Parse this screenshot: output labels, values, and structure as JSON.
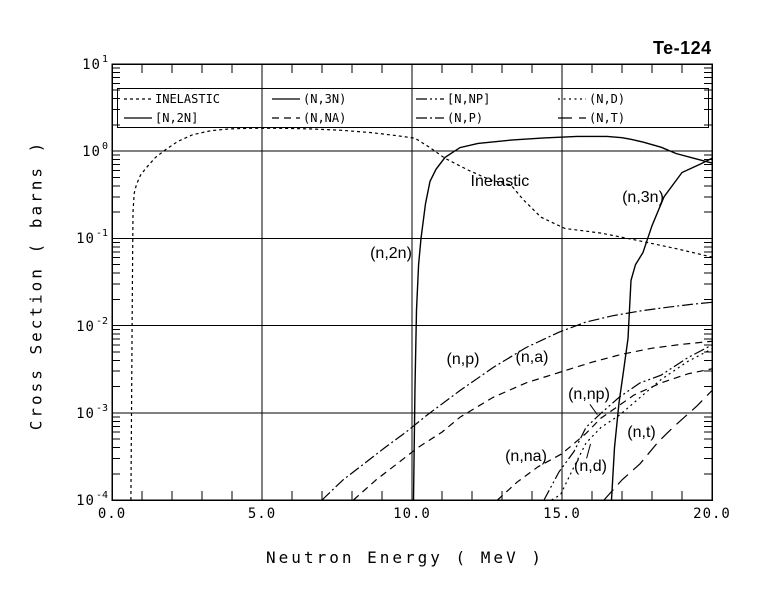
{
  "title": "Te-124",
  "axes": {
    "x": {
      "label": "Neutron Energy ( MeV )",
      "ticks": [
        "0.0",
        "5.0",
        "10.0",
        "15.0",
        "20.0"
      ],
      "tick_values": [
        0,
        5,
        10,
        15,
        20
      ],
      "range": [
        0,
        20
      ],
      "minor_step": 1
    },
    "y": {
      "label": "Cross Section ( barns )",
      "ticks": [
        {
          "base": "10",
          "exp": "1"
        },
        {
          "base": "10",
          "exp": "0"
        },
        {
          "base": "10",
          "exp": "-1"
        },
        {
          "base": "10",
          "exp": "-2"
        },
        {
          "base": "10",
          "exp": "-3"
        },
        {
          "base": "10",
          "exp": "-4"
        }
      ],
      "tick_values": [
        10,
        1,
        0.1,
        0.01,
        0.001,
        0.0001
      ],
      "scale": "log",
      "range": [
        0.0001,
        10
      ]
    }
  },
  "legend": {
    "position": "top",
    "entries": [
      {
        "label": "INELASTIC",
        "dash": "3 3"
      },
      {
        "label": "(N,3N)",
        "dash": ""
      },
      {
        "label": "[N,NP]",
        "dash": "11 3 2 3 2 3"
      },
      {
        "label": "(N,D)",
        "dash": "2 3.5"
      },
      {
        "label": "[N,2N]",
        "dash": ""
      },
      {
        "label": "(N,NA)",
        "dash": "7 5"
      },
      {
        "label": "(N,P)",
        "dash": "11 3 2 3"
      },
      {
        "label": "(N,T)",
        "dash": "14 7"
      }
    ]
  },
  "chart_data": {
    "type": "line",
    "title": "Te-124",
    "xlabel": "Neutron Energy ( MeV )",
    "ylabel": "Cross Section ( barns )",
    "xlim": [
      0,
      20
    ],
    "ylim": [
      0.0001,
      10
    ],
    "y_scale": "log",
    "grid": true,
    "legend_position": "top",
    "series": [
      {
        "id": "inelastic",
        "label": "INELASTIC",
        "dash": "3 3",
        "points": [
          [
            0.63,
            0.0001
          ],
          [
            0.66,
            0.003
          ],
          [
            0.68,
            0.03
          ],
          [
            0.7,
            0.2
          ],
          [
            0.74,
            0.33
          ],
          [
            0.82,
            0.42
          ],
          [
            0.95,
            0.53
          ],
          [
            1.15,
            0.65
          ],
          [
            1.45,
            0.85
          ],
          [
            1.8,
            1.05
          ],
          [
            2.2,
            1.3
          ],
          [
            2.7,
            1.55
          ],
          [
            3.3,
            1.72
          ],
          [
            3.9,
            1.8
          ],
          [
            4.6,
            1.83
          ],
          [
            5.6,
            1.83
          ],
          [
            6.6,
            1.8
          ],
          [
            7.6,
            1.74
          ],
          [
            8.6,
            1.64
          ],
          [
            9.4,
            1.52
          ],
          [
            10.1,
            1.41
          ],
          [
            10.6,
            1.1
          ],
          [
            11.1,
            0.83
          ],
          [
            11.9,
            0.6
          ],
          [
            12.6,
            0.47
          ],
          [
            13.3,
            0.41
          ],
          [
            13.7,
            0.28
          ],
          [
            14.3,
            0.175
          ],
          [
            15.1,
            0.13
          ],
          [
            16.3,
            0.115
          ],
          [
            17.5,
            0.095
          ],
          [
            18.9,
            0.075
          ],
          [
            20,
            0.061
          ]
        ]
      },
      {
        "id": "n2n",
        "label": "[N,2N]",
        "dash": "",
        "points": [
          [
            10.05,
            0.0001
          ],
          [
            10.1,
            0.002
          ],
          [
            10.15,
            0.015
          ],
          [
            10.22,
            0.05
          ],
          [
            10.3,
            0.1
          ],
          [
            10.45,
            0.25
          ],
          [
            10.6,
            0.45
          ],
          [
            10.8,
            0.62
          ],
          [
            11.1,
            0.85
          ],
          [
            11.6,
            1.1
          ],
          [
            12.2,
            1.23
          ],
          [
            13.3,
            1.34
          ],
          [
            14.4,
            1.42
          ],
          [
            15.5,
            1.48
          ],
          [
            16.5,
            1.48
          ],
          [
            17.0,
            1.43
          ],
          [
            17.3,
            1.37
          ],
          [
            17.7,
            1.27
          ],
          [
            18.3,
            1.11
          ],
          [
            18.8,
            0.94
          ],
          [
            19.4,
            0.83
          ],
          [
            20,
            0.73
          ]
        ]
      },
      {
        "id": "n3n",
        "label": "(N,3N)",
        "dash": "",
        "points": [
          [
            16.65,
            0.0001
          ],
          [
            16.75,
            0.0004
          ],
          [
            16.9,
            0.0013
          ],
          [
            17.05,
            0.003
          ],
          [
            17.2,
            0.0071
          ],
          [
            17.3,
            0.033
          ],
          [
            17.45,
            0.05
          ],
          [
            17.7,
            0.069
          ],
          [
            18.0,
            0.14
          ],
          [
            18.4,
            0.3
          ],
          [
            19.0,
            0.57
          ],
          [
            19.6,
            0.71
          ],
          [
            20,
            0.83
          ]
        ]
      },
      {
        "id": "np",
        "label": "(N,P)",
        "dash": "11 3 2 3",
        "points": [
          [
            7.0,
            0.0001
          ],
          [
            7.7,
            0.00017
          ],
          [
            8.4,
            0.00026
          ],
          [
            9.1,
            0.0004
          ],
          [
            9.8,
            0.0006
          ],
          [
            10.5,
            0.00094
          ],
          [
            11.6,
            0.0018
          ],
          [
            12.7,
            0.0033
          ],
          [
            13.8,
            0.0056
          ],
          [
            14.9,
            0.0084
          ],
          [
            15.8,
            0.011
          ],
          [
            16.7,
            0.013
          ],
          [
            17.6,
            0.0147
          ],
          [
            18.5,
            0.0162
          ],
          [
            19.3,
            0.0175
          ],
          [
            20,
            0.0185
          ]
        ]
      },
      {
        "id": "na",
        "label": "(n,a)",
        "dash": "7 5",
        "points": [
          [
            8.05,
            0.0001
          ],
          [
            8.8,
            0.00017
          ],
          [
            9.5,
            0.00026
          ],
          [
            10.2,
            0.0004
          ],
          [
            11.0,
            0.0006
          ],
          [
            11.6,
            0.00089
          ],
          [
            12.7,
            0.0015
          ],
          [
            13.8,
            0.0022
          ],
          [
            14.9,
            0.0029
          ],
          [
            16.0,
            0.0038
          ],
          [
            17.0,
            0.0047
          ],
          [
            18.0,
            0.0055
          ],
          [
            19.0,
            0.0061
          ],
          [
            20,
            0.0066
          ]
        ]
      },
      {
        "id": "nnp",
        "label": "[N,NP]",
        "dash": "11 3 2 3 2 3",
        "points": [
          [
            14.4,
            0.0001
          ],
          [
            14.9,
            0.00021
          ],
          [
            15.4,
            0.00036
          ],
          [
            15.8,
            0.00068
          ],
          [
            16.3,
            0.00099
          ],
          [
            16.9,
            0.0015
          ],
          [
            17.6,
            0.0022
          ],
          [
            18.3,
            0.0027
          ],
          [
            19.2,
            0.0043
          ],
          [
            20,
            0.006
          ]
        ]
      },
      {
        "id": "nna",
        "label": "(N,NA)",
        "dash": "7 5",
        "points": [
          [
            12.85,
            0.0001
          ],
          [
            13.5,
            0.00016
          ],
          [
            14.2,
            0.00024
          ],
          [
            15.0,
            0.00034
          ],
          [
            15.8,
            0.00058
          ],
          [
            16.3,
            0.00087
          ],
          [
            17.4,
            0.0016
          ],
          [
            18.3,
            0.0022
          ],
          [
            19.2,
            0.0028
          ],
          [
            20,
            0.0032
          ]
        ]
      },
      {
        "id": "nd",
        "label": "(N,D)",
        "dash": "2 3.5",
        "points": [
          [
            14.65,
            0.0001
          ],
          [
            14.95,
            0.000115
          ],
          [
            15.4,
            0.00024
          ],
          [
            15.8,
            0.00045
          ],
          [
            16.3,
            0.00068
          ],
          [
            16.9,
            0.00093
          ],
          [
            17.5,
            0.0014
          ],
          [
            18.3,
            0.0024
          ],
          [
            19.2,
            0.0039
          ],
          [
            20,
            0.0054
          ]
        ]
      },
      {
        "id": "nt",
        "label": "(N,T)",
        "dash": "14 7",
        "points": [
          [
            16.4,
            0.0001
          ],
          [
            17.0,
            0.00017
          ],
          [
            17.6,
            0.00026
          ],
          [
            18.2,
            0.00046
          ],
          [
            18.7,
            0.00068
          ],
          [
            19.5,
            0.0012
          ],
          [
            20,
            0.0018
          ]
        ]
      }
    ],
    "annotations": [
      {
        "id": "inelastic",
        "text": "Inelastic",
        "x": 12.93,
        "y": 0.44
      },
      {
        "id": "n3n",
        "text": "(n,3n)",
        "x": 17.7,
        "y": 0.29
      },
      {
        "id": "n2n",
        "text": "(n,2n)",
        "x": 9.3,
        "y": 0.066
      },
      {
        "id": "np",
        "text": "(n,p)",
        "x": 11.7,
        "y": 0.004
      },
      {
        "id": "na",
        "text": "(n,a)",
        "x": 14.0,
        "y": 0.0042
      },
      {
        "id": "nnp",
        "text": "(n,np)",
        "x": 15.9,
        "y": 0.0016
      },
      {
        "id": "nna",
        "text": "(n,na)",
        "x": 13.8,
        "y": 0.00031
      },
      {
        "id": "nd",
        "text": "(n,d)",
        "x": 15.95,
        "y": 0.00024
      },
      {
        "id": "nt",
        "text": "(n,t)",
        "x": 17.65,
        "y": 0.00058
      }
    ],
    "pointer_lines": [
      {
        "id": "nnp-pointer",
        "x1": 15.93,
        "y1": 0.00125,
        "x2": 16.18,
        "y2": 0.00095
      },
      {
        "id": "nd-pointer",
        "x1": 15.82,
        "y1": 0.0003,
        "x2": 15.95,
        "y2": 0.00044
      }
    ]
  }
}
